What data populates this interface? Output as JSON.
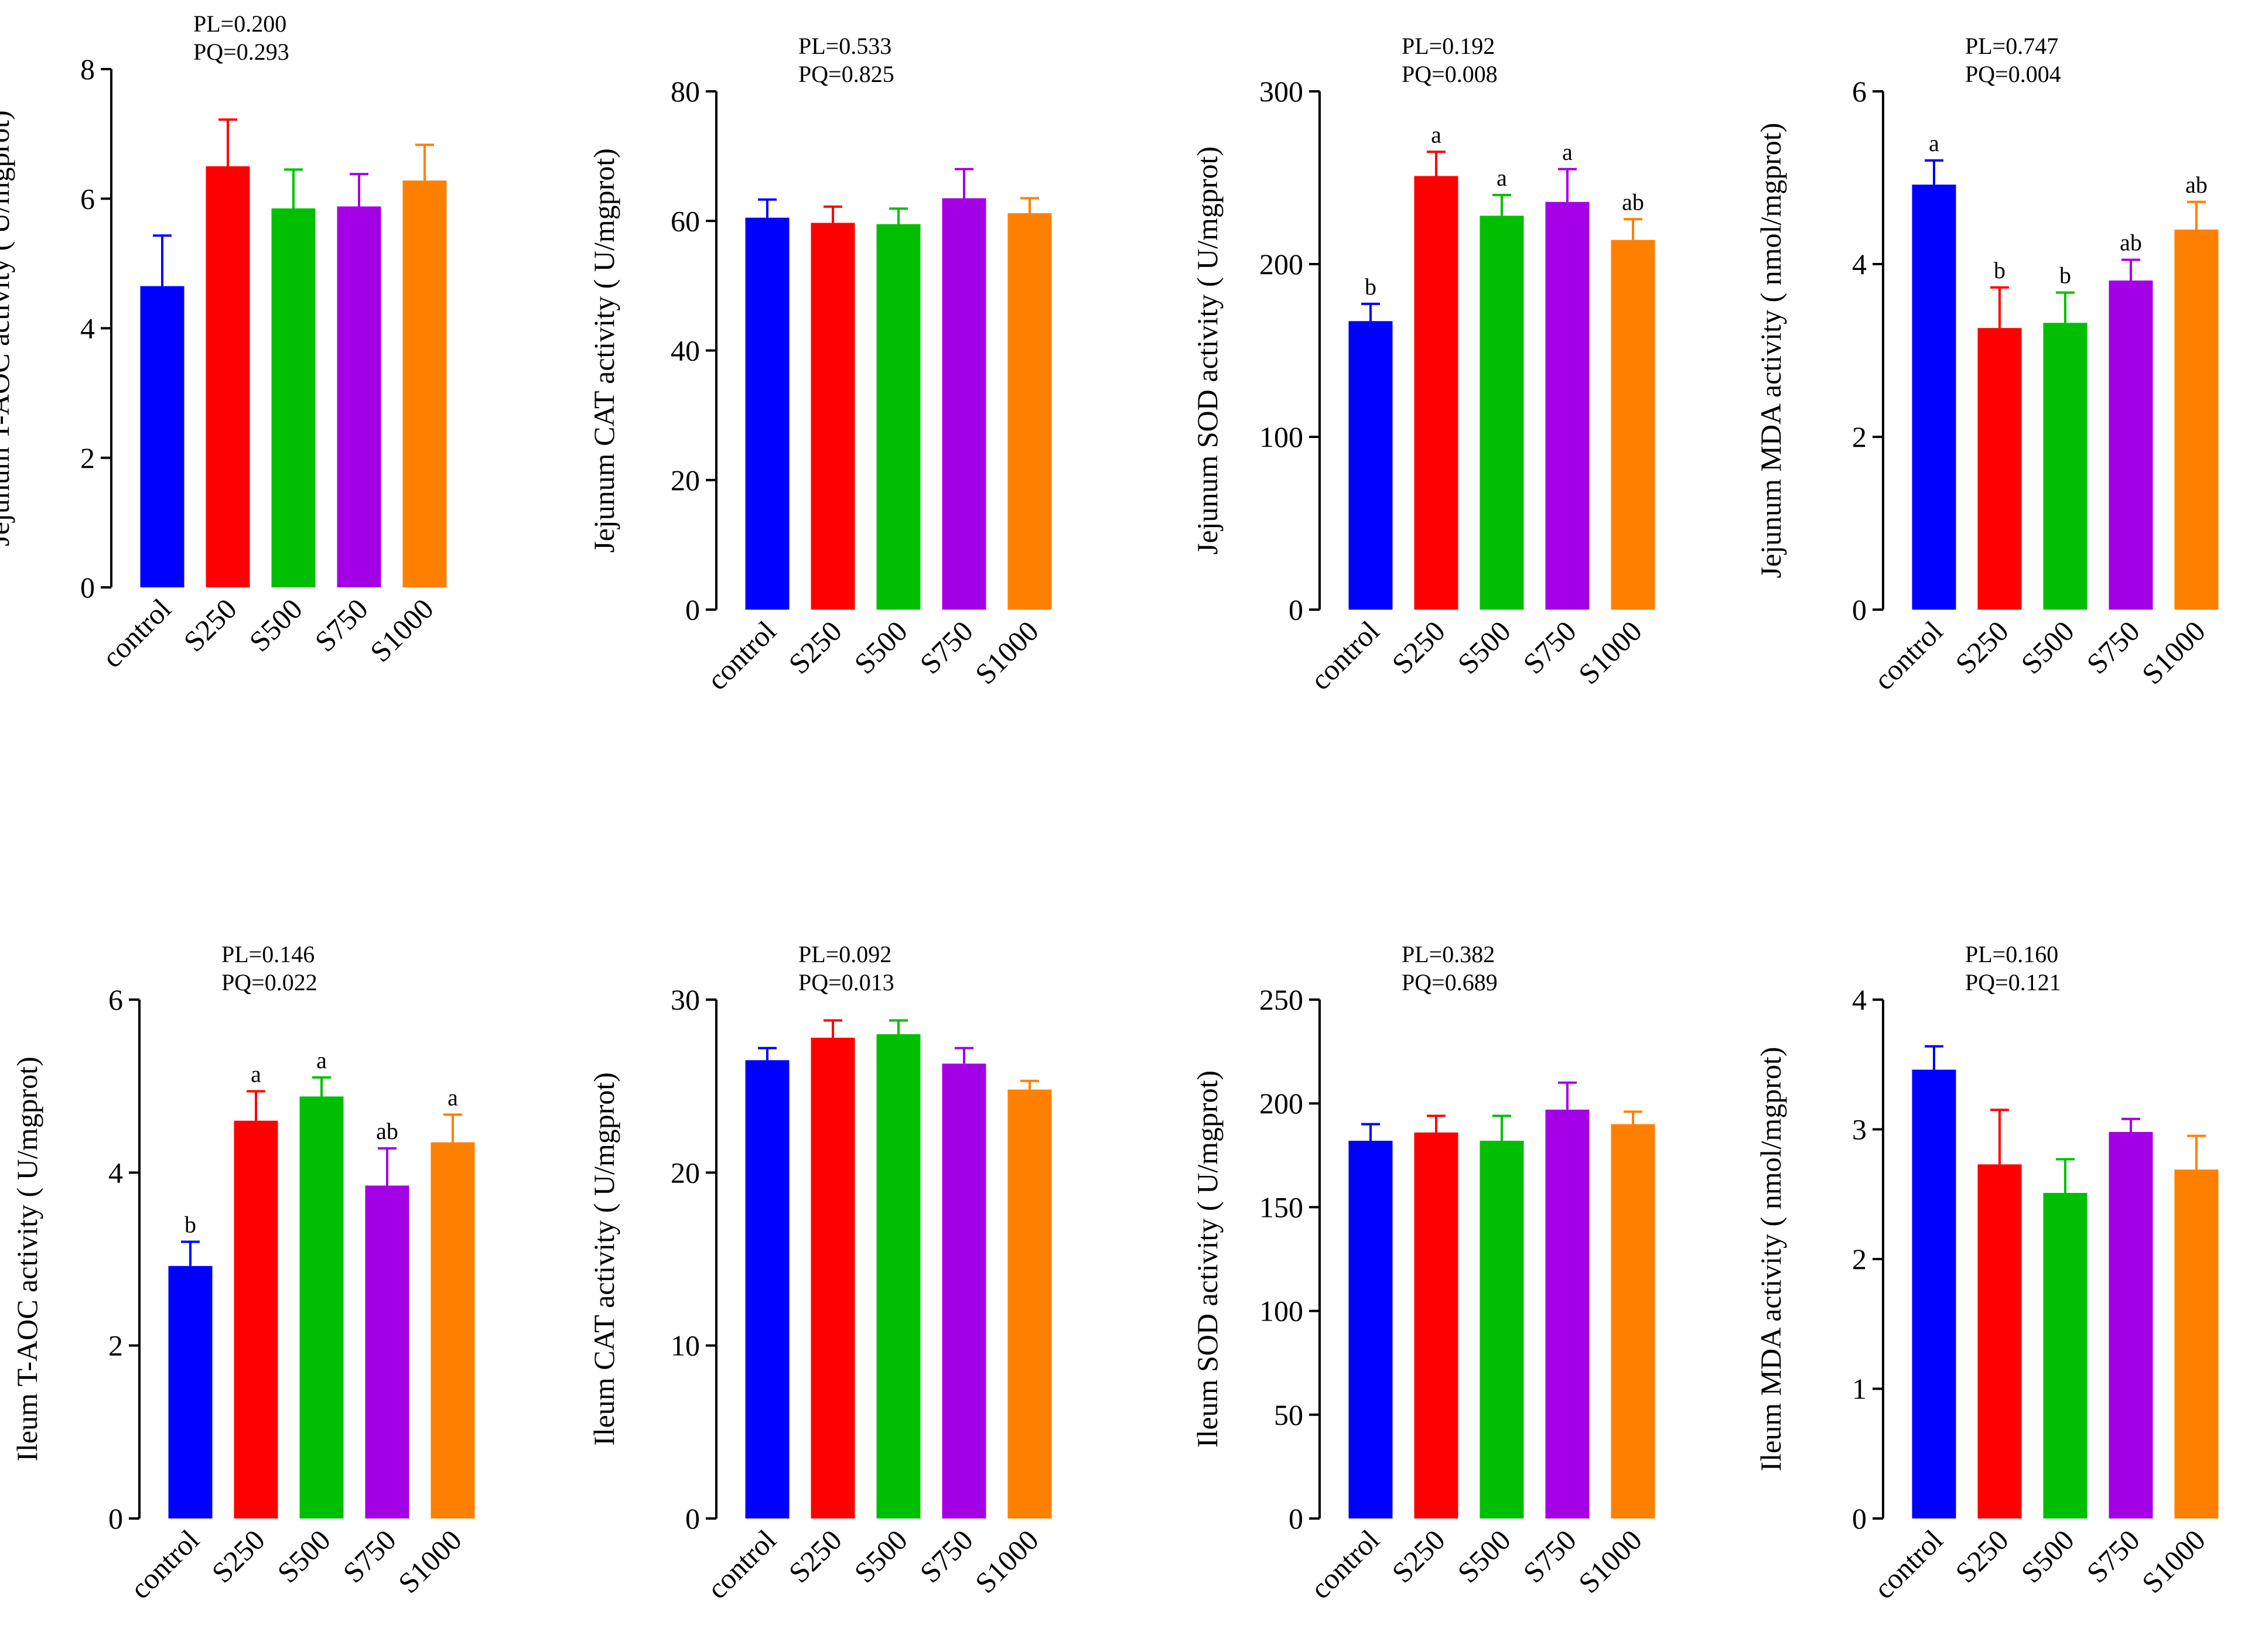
{
  "categories": [
    "control",
    "S250",
    "S500",
    "S750",
    "S1000"
  ],
  "colors": [
    "#0000ff",
    "#ff0000",
    "#00bf00",
    "#a300e6",
    "#ff8000"
  ],
  "chart_data": [
    {
      "type": "bar",
      "ylabel": "Jejunum T-AOC activity ( U/mgprot)",
      "stat_pl": "PL=0.200",
      "stat_pq": "PQ=0.293",
      "ylim": [
        0,
        8
      ],
      "yticks": [
        0,
        2,
        4,
        6,
        8
      ],
      "values": [
        4.65,
        6.5,
        5.85,
        5.88,
        6.28
      ],
      "errors": [
        0.78,
        0.72,
        0.6,
        0.5,
        0.55
      ],
      "sig_labels": [
        "",
        "",
        "",
        "",
        ""
      ]
    },
    {
      "type": "bar",
      "ylabel": "Jejunum CAT activity ( U/mgprot)",
      "stat_pl": "PL=0.533",
      "stat_pq": "PQ=0.825",
      "ylim": [
        0,
        80
      ],
      "yticks": [
        0,
        20,
        40,
        60,
        80
      ],
      "values": [
        60.5,
        59.7,
        59.5,
        63.5,
        61.2
      ],
      "errors": [
        2.8,
        2.5,
        2.4,
        4.5,
        2.3
      ],
      "sig_labels": [
        "",
        "",
        "",
        "",
        ""
      ]
    },
    {
      "type": "bar",
      "ylabel": "Jejunum SOD activity ( U/mgprot)",
      "stat_pl": "PL=0.192",
      "stat_pq": "PQ=0.008",
      "ylim": [
        0,
        300
      ],
      "yticks": [
        0,
        100,
        200,
        300
      ],
      "values": [
        167,
        251,
        228,
        236,
        214
      ],
      "errors": [
        10,
        14,
        12,
        19,
        12
      ],
      "sig_labels": [
        "b",
        "a",
        "a",
        "a",
        "ab"
      ]
    },
    {
      "type": "bar",
      "ylabel": "Jejunum MDA activity  ( nmol/mgprot)",
      "stat_pl": "PL=0.747",
      "stat_pq": "PQ=0.004",
      "ylim": [
        0,
        6
      ],
      "yticks": [
        0,
        2,
        4,
        6
      ],
      "values": [
        4.92,
        3.26,
        3.32,
        3.81,
        4.4
      ],
      "errors": [
        0.28,
        0.47,
        0.35,
        0.24,
        0.32
      ],
      "sig_labels": [
        "a",
        "b",
        "b",
        "ab",
        "ab"
      ]
    },
    {
      "type": "bar",
      "ylabel": "Ileum T-AOC activity ( U/mgprot)",
      "stat_pl": "PL=0.146",
      "stat_pq": "PQ=0.022",
      "ylim": [
        0,
        6
      ],
      "yticks": [
        0,
        2,
        4,
        6
      ],
      "values": [
        2.92,
        4.6,
        4.88,
        3.85,
        4.35
      ],
      "errors": [
        0.28,
        0.34,
        0.22,
        0.43,
        0.32
      ],
      "sig_labels": [
        "b",
        "a",
        "a",
        "ab",
        "a"
      ]
    },
    {
      "type": "bar",
      "ylabel": "Ileum CAT activity ( U/mgprot)",
      "stat_pl": "PL=0.092",
      "stat_pq": "PQ=0.013",
      "ylim": [
        0,
        30
      ],
      "yticks": [
        0,
        10,
        20,
        30
      ],
      "values": [
        26.5,
        27.8,
        28.0,
        26.3,
        24.8
      ],
      "errors": [
        0.7,
        1.0,
        0.8,
        0.9,
        0.5
      ],
      "sig_labels": [
        "",
        "",
        "",
        "",
        ""
      ]
    },
    {
      "type": "bar",
      "ylabel": "Ileum SOD activity ( U/mgprot)",
      "stat_pl": "PL=0.382",
      "stat_pq": "PQ=0.689",
      "ylim": [
        0,
        250
      ],
      "yticks": [
        0,
        50,
        100,
        150,
        200,
        250
      ],
      "values": [
        182,
        186,
        182,
        197,
        190
      ],
      "errors": [
        8,
        8,
        12,
        13,
        6
      ],
      "sig_labels": [
        "",
        "",
        "",
        "",
        ""
      ]
    },
    {
      "type": "bar",
      "ylabel": "Ileum  MDA activity ( nmol/mgprot)",
      "stat_pl": "PL=0.160",
      "stat_pq": "PQ=0.121",
      "ylim": [
        0,
        4
      ],
      "yticks": [
        0,
        1,
        2,
        3,
        4
      ],
      "values": [
        3.46,
        2.73,
        2.51,
        2.98,
        2.69
      ],
      "errors": [
        0.18,
        0.42,
        0.26,
        0.1,
        0.26
      ],
      "sig_labels": [
        "",
        "",
        "",
        "",
        ""
      ]
    }
  ]
}
